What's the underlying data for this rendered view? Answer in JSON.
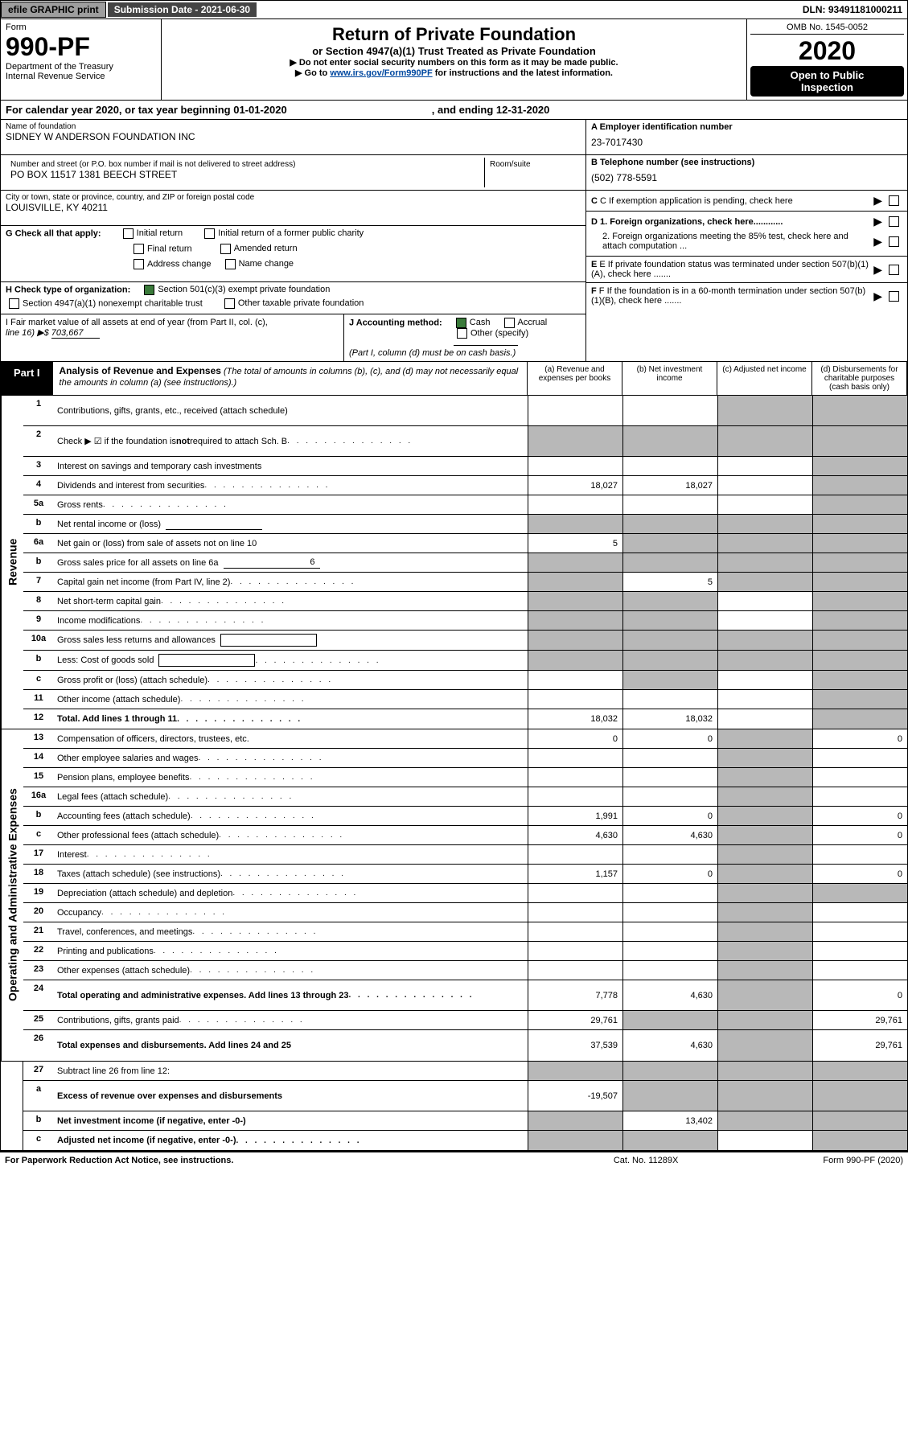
{
  "top": {
    "efile_btn": "efile GRAPHIC print",
    "sub_date_label": "Submission Date - 2021-06-30",
    "dln": "DLN: 93491181000211"
  },
  "header": {
    "form_label": "Form",
    "form_no": "990-PF",
    "dept1": "Department of the Treasury",
    "dept2": "Internal Revenue Service",
    "title": "Return of Private Foundation",
    "sub": "or Section 4947(a)(1) Trust Treated as Private Foundation",
    "note1": "▶ Do not enter social security numbers on this form as it may be made public.",
    "note2_pre": "▶ Go to ",
    "note2_link": "www.irs.gov/Form990PF",
    "note2_post": " for instructions and the latest information.",
    "omb": "OMB No. 1545-0052",
    "year": "2020",
    "openpub1": "Open to Public",
    "openpub2": "Inspection"
  },
  "calyear": {
    "pre": "For calendar year 2020, or tax year beginning 01-01-2020",
    "mid": ", and ending 12-31-2020"
  },
  "id": {
    "name_lbl": "Name of foundation",
    "name_val": "SIDNEY W ANDERSON FOUNDATION INC",
    "addr_lbl": "Number and street (or P.O. box number if mail is not delivered to street address)",
    "addr_val": "PO BOX 11517 1381 BEECH STREET",
    "room_lbl": "Room/suite",
    "room_val": "",
    "city_lbl": "City or town, state or province, country, and ZIP or foreign postal code",
    "city_val": "LOUISVILLE, KY  40211",
    "a_lbl": "A Employer identification number",
    "a_val": "23-7017430",
    "b_lbl": "B Telephone number (see instructions)",
    "b_val": "(502) 778-5591",
    "c_lbl": "C If exemption application is pending, check here",
    "d1_lbl": "D 1. Foreign organizations, check here............",
    "d2_lbl": "2. Foreign organizations meeting the 85% test, check here and attach computation ...",
    "e_lbl": "E If private foundation status was terminated under section 507(b)(1)(A), check here .......",
    "f_lbl": "F If the foundation is in a 60-month termination under section 507(b)(1)(B), check here ......."
  },
  "g": {
    "lbl": "G Check all that apply:",
    "o1": "Initial return",
    "o2": "Initial return of a former public charity",
    "o3": "Final return",
    "o4": "Amended return",
    "o5": "Address change",
    "o6": "Name change"
  },
  "h": {
    "lbl": "H Check type of organization:",
    "o1": "Section 501(c)(3) exempt private foundation",
    "o2": "Section 4947(a)(1) nonexempt charitable trust",
    "o3": "Other taxable private foundation"
  },
  "i": {
    "lbl": "I Fair market value of all assets at end of year (from Part II, col. (c),",
    "lbl2": "line 16) ▶$ ",
    "val": "703,667"
  },
  "j": {
    "lbl": "J Accounting method:",
    "o1": "Cash",
    "o2": "Accrual",
    "o3": "Other (specify)",
    "note": "(Part I, column (d) must be on cash basis.)"
  },
  "part1": {
    "tab": "Part I",
    "title": "Analysis of Revenue and Expenses",
    "desc": " (The total of amounts in columns (b), (c), and (d) may not necessarily equal the amounts in column (a) (see instructions).)",
    "col_a": "(a)  Revenue and expenses per books",
    "col_b": "(b)  Net investment income",
    "col_c": "(c)  Adjusted net income",
    "col_d": "(d)  Disbursements for charitable purposes (cash basis only)"
  },
  "side": {
    "revenue": "Revenue",
    "expenses": "Operating and Administrative Expenses"
  },
  "rows_rev": [
    {
      "n": "1",
      "l": "Contributions, gifts, grants, etc., received (attach schedule)",
      "a": "",
      "b": "",
      "c": "s",
      "d": "s",
      "tall": true
    },
    {
      "n": "2",
      "l": "Check ▶ ☑ if the foundation is not required to attach Sch. B",
      "a": "s",
      "b": "s",
      "c": "s",
      "d": "s",
      "bold_is": true,
      "tall": true,
      "dots": true
    },
    {
      "n": "3",
      "l": "Interest on savings and temporary cash investments",
      "a": "",
      "b": "",
      "c": "",
      "d": "s"
    },
    {
      "n": "4",
      "l": "Dividends and interest from securities",
      "a": "18,027",
      "b": "18,027",
      "c": "",
      "d": "s",
      "dots": true
    },
    {
      "n": "5a",
      "l": "Gross rents",
      "a": "",
      "b": "",
      "c": "",
      "d": "s",
      "dots": true
    },
    {
      "n": "b",
      "l": "Net rental income or (loss)",
      "a": "s",
      "b": "s",
      "c": "s",
      "d": "s",
      "inline_u": true
    },
    {
      "n": "6a",
      "l": "Net gain or (loss) from sale of assets not on line 10",
      "a": "5",
      "b": "s",
      "c": "s",
      "d": "s"
    },
    {
      "n": "b",
      "l": "Gross sales price for all assets on line 6a",
      "a": "s",
      "b": "s",
      "c": "s",
      "d": "s",
      "inline_u": true,
      "inline_u_val": "6"
    },
    {
      "n": "7",
      "l": "Capital gain net income (from Part IV, line 2)",
      "a": "s",
      "b": "5",
      "c": "s",
      "d": "s",
      "dots": true
    },
    {
      "n": "8",
      "l": "Net short-term capital gain",
      "a": "s",
      "b": "s",
      "c": "",
      "d": "s",
      "dots": true
    },
    {
      "n": "9",
      "l": "Income modifications",
      "a": "s",
      "b": "s",
      "c": "",
      "d": "s",
      "dots": true
    },
    {
      "n": "10a",
      "l": "Gross sales less returns and allowances",
      "a": "s",
      "b": "s",
      "c": "s",
      "d": "s",
      "inline_box": true
    },
    {
      "n": "b",
      "l": "Less: Cost of goods sold",
      "a": "s",
      "b": "s",
      "c": "s",
      "d": "s",
      "inline_box": true,
      "dots": true
    },
    {
      "n": "c",
      "l": "Gross profit or (loss) (attach schedule)",
      "a": "",
      "b": "s",
      "c": "",
      "d": "s",
      "dots": true
    },
    {
      "n": "11",
      "l": "Other income (attach schedule)",
      "a": "",
      "b": "",
      "c": "",
      "d": "s",
      "dots": true
    },
    {
      "n": "12",
      "l": "Total. Add lines 1 through 11",
      "a": "18,032",
      "b": "18,032",
      "c": "",
      "d": "s",
      "bold": true,
      "dots": true
    }
  ],
  "rows_exp": [
    {
      "n": "13",
      "l": "Compensation of officers, directors, trustees, etc.",
      "a": "0",
      "b": "0",
      "c": "s",
      "d": "0"
    },
    {
      "n": "14",
      "l": "Other employee salaries and wages",
      "a": "",
      "b": "",
      "c": "s",
      "d": "",
      "dots": true
    },
    {
      "n": "15",
      "l": "Pension plans, employee benefits",
      "a": "",
      "b": "",
      "c": "s",
      "d": "",
      "dots": true
    },
    {
      "n": "16a",
      "l": "Legal fees (attach schedule)",
      "a": "",
      "b": "",
      "c": "s",
      "d": "",
      "dots": true
    },
    {
      "n": "b",
      "l": "Accounting fees (attach schedule)",
      "a": "1,991",
      "b": "0",
      "c": "s",
      "d": "0",
      "dots": true
    },
    {
      "n": "c",
      "l": "Other professional fees (attach schedule)",
      "a": "4,630",
      "b": "4,630",
      "c": "s",
      "d": "0",
      "dots": true
    },
    {
      "n": "17",
      "l": "Interest",
      "a": "",
      "b": "",
      "c": "s",
      "d": "",
      "dots": true
    },
    {
      "n": "18",
      "l": "Taxes (attach schedule) (see instructions)",
      "a": "1,157",
      "b": "0",
      "c": "s",
      "d": "0",
      "dots": true
    },
    {
      "n": "19",
      "l": "Depreciation (attach schedule) and depletion",
      "a": "",
      "b": "",
      "c": "s",
      "d": "s",
      "dots": true
    },
    {
      "n": "20",
      "l": "Occupancy",
      "a": "",
      "b": "",
      "c": "s",
      "d": "",
      "dots": true
    },
    {
      "n": "21",
      "l": "Travel, conferences, and meetings",
      "a": "",
      "b": "",
      "c": "s",
      "d": "",
      "dots": true
    },
    {
      "n": "22",
      "l": "Printing and publications",
      "a": "",
      "b": "",
      "c": "s",
      "d": "",
      "dots": true
    },
    {
      "n": "23",
      "l": "Other expenses (attach schedule)",
      "a": "",
      "b": "",
      "c": "s",
      "d": "",
      "dots": true
    },
    {
      "n": "24",
      "l": "Total operating and administrative expenses. Add lines 13 through 23",
      "a": "7,778",
      "b": "4,630",
      "c": "s",
      "d": "0",
      "bold": true,
      "tall": true,
      "dots": true
    },
    {
      "n": "25",
      "l": "Contributions, gifts, grants paid",
      "a": "29,761",
      "b": "s",
      "c": "s",
      "d": "29,761",
      "dots": true
    },
    {
      "n": "26",
      "l": "Total expenses and disbursements. Add lines 24 and 25",
      "a": "37,539",
      "b": "4,630",
      "c": "s",
      "d": "29,761",
      "bold": true,
      "tall": true
    }
  ],
  "rows_bot": [
    {
      "n": "27",
      "l": "Subtract line 26 from line 12:",
      "a": "s",
      "b": "s",
      "c": "s",
      "d": "s"
    },
    {
      "n": "a",
      "l": "Excess of revenue over expenses and disbursements",
      "a": "-19,507",
      "b": "s",
      "c": "s",
      "d": "s",
      "bold": true,
      "tall": true
    },
    {
      "n": "b",
      "l": "Net investment income (if negative, enter -0-)",
      "a": "s",
      "b": "13,402",
      "c": "s",
      "d": "s",
      "bold": true
    },
    {
      "n": "c",
      "l": "Adjusted net income (if negative, enter -0-)",
      "a": "s",
      "b": "s",
      "c": "",
      "d": "s",
      "bold": true,
      "dots": true
    }
  ],
  "footer": {
    "l": "For Paperwork Reduction Act Notice, see instructions.",
    "m": "Cat. No. 11289X",
    "r": "Form 990-PF (2020)"
  }
}
